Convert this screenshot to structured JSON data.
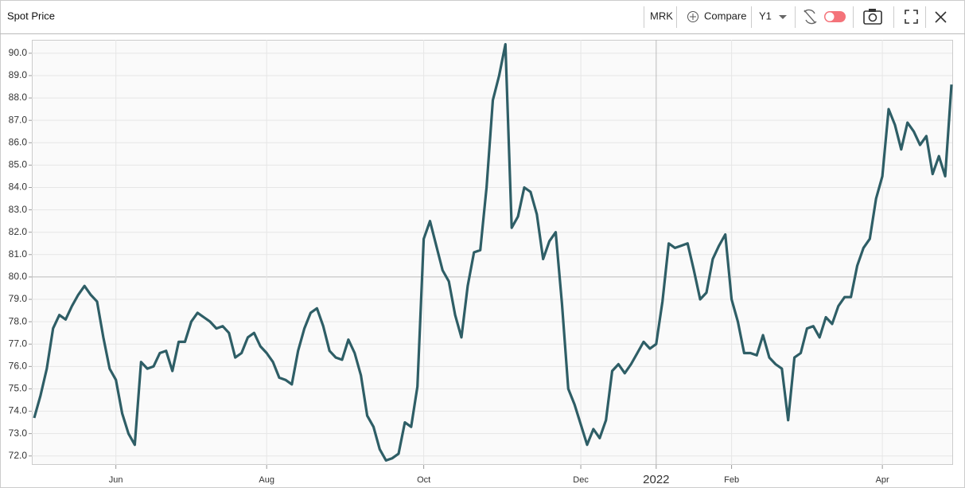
{
  "toolbar": {
    "title": "Spot Price",
    "ticker": "MRK",
    "compare": "Compare",
    "period": "Y1"
  },
  "chart_data": {
    "type": "line",
    "color": "#2e5e66",
    "grid": true,
    "ylim": [
      71.6,
      90.6
    ],
    "yticks": [
      {
        "value": 72,
        "label": "72.0"
      },
      {
        "value": 73,
        "label": "73.0"
      },
      {
        "value": 74,
        "label": "74.0"
      },
      {
        "value": 75,
        "label": "75.0"
      },
      {
        "value": 76,
        "label": "76.0"
      },
      {
        "value": 77,
        "label": "77.0"
      },
      {
        "value": 78,
        "label": "78.0"
      },
      {
        "value": 79,
        "label": "79.0"
      },
      {
        "value": 80,
        "label": "80.0"
      },
      {
        "value": 81,
        "label": "81.0"
      },
      {
        "value": 82,
        "label": "82.0"
      },
      {
        "value": 83,
        "label": "83.0"
      },
      {
        "value": 84,
        "label": "84.0"
      },
      {
        "value": 85,
        "label": "85.0"
      },
      {
        "value": 86,
        "label": "86.0"
      },
      {
        "value": 87,
        "label": "87.0"
      },
      {
        "value": 88,
        "label": "88.0"
      },
      {
        "value": 89,
        "label": "89.0"
      },
      {
        "value": 90,
        "label": "90.0"
      }
    ],
    "categories": [
      null,
      null,
      null,
      null,
      null,
      null,
      null,
      null,
      null,
      null,
      null,
      null,
      null,
      "Jun",
      null,
      null,
      null,
      null,
      null,
      null,
      null,
      null,
      null,
      null,
      null,
      null,
      null,
      null,
      null,
      null,
      null,
      null,
      null,
      null,
      null,
      null,
      null,
      "Aug",
      null,
      null,
      null,
      null,
      null,
      null,
      null,
      null,
      null,
      null,
      null,
      null,
      null,
      null,
      null,
      null,
      null,
      null,
      null,
      null,
      null,
      null,
      null,
      null,
      "Oct",
      null,
      null,
      null,
      null,
      null,
      null,
      null,
      null,
      null,
      null,
      null,
      null,
      null,
      null,
      null,
      null,
      null,
      null,
      null,
      null,
      null,
      null,
      null,
      null,
      "Dec",
      null,
      null,
      null,
      null,
      null,
      null,
      null,
      null,
      null,
      null,
      null,
      "2022",
      null,
      null,
      null,
      null,
      null,
      null,
      null,
      null,
      null,
      null,
      null,
      "Feb",
      null,
      null,
      null,
      null,
      null,
      null,
      null,
      null,
      null,
      null,
      null,
      null,
      null,
      null,
      null,
      null,
      null,
      null,
      null,
      null,
      null,
      null,
      null,
      "Apr",
      null,
      null,
      null,
      null,
      null,
      null,
      null,
      null,
      null,
      null,
      null
    ],
    "values": [
      73.7,
      74.7,
      75.9,
      77.7,
      78.3,
      78.1,
      78.7,
      79.2,
      79.6,
      79.2,
      78.9,
      77.3,
      75.9,
      75.4,
      73.9,
      73.0,
      72.5,
      76.2,
      75.9,
      76.0,
      76.6,
      76.7,
      75.8,
      77.1,
      77.1,
      78.0,
      78.4,
      78.2,
      78.0,
      77.7,
      77.8,
      77.5,
      76.4,
      76.6,
      77.3,
      77.5,
      76.9,
      76.6,
      76.2,
      75.5,
      75.4,
      75.2,
      76.7,
      77.7,
      78.4,
      78.6,
      77.8,
      76.7,
      76.4,
      76.3,
      77.2,
      76.6,
      75.6,
      73.8,
      73.3,
      72.3,
      71.8,
      71.9,
      72.1,
      73.5,
      73.3,
      75.1,
      81.7,
      82.5,
      81.4,
      80.3,
      79.8,
      78.3,
      77.3,
      79.6,
      81.1,
      81.2,
      84.0,
      87.9,
      89.0,
      90.4,
      82.2,
      82.7,
      84.0,
      83.8,
      82.8,
      80.8,
      81.6,
      82.0,
      78.8,
      75.0,
      74.3,
      73.4,
      72.5,
      73.2,
      72.8,
      73.6,
      75.8,
      76.1,
      75.7,
      76.1,
      76.6,
      77.1,
      76.8,
      77.0,
      78.9,
      81.5,
      81.3,
      81.4,
      81.5,
      80.3,
      79.0,
      79.3,
      80.8,
      81.4,
      81.9,
      79.0,
      78.0,
      76.6,
      76.6,
      76.5,
      77.4,
      76.4,
      76.1,
      75.9,
      73.6,
      76.4,
      76.6,
      77.7,
      77.8,
      77.3,
      78.2,
      77.9,
      78.7,
      79.1,
      79.1,
      80.5,
      81.3,
      81.7,
      83.5,
      84.5,
      87.5,
      86.8,
      85.7,
      86.9,
      86.5,
      85.9,
      86.3,
      84.6,
      85.4,
      84.5,
      88.6
    ]
  }
}
